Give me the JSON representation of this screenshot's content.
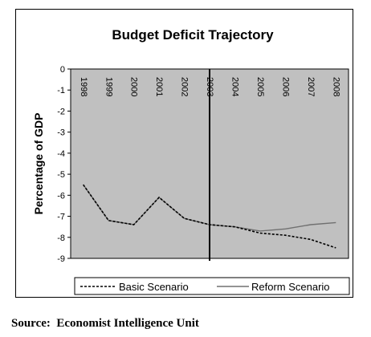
{
  "chart_data": {
    "type": "line",
    "title": "Budget Deficit Trajectory",
    "ylabel": "Percentage of GDP",
    "xlabel": "",
    "x": [
      "1998",
      "1999",
      "2000",
      "2001",
      "2002",
      "2003",
      "2004",
      "2005",
      "2006",
      "2007",
      "2008"
    ],
    "ylim": [
      -9,
      0
    ],
    "yticks": [
      0,
      -1,
      -2,
      -3,
      -4,
      -5,
      -6,
      -7,
      -8,
      -9
    ],
    "vertical_marker_at": "2003",
    "series": [
      {
        "name": "Basic Scenario",
        "style": "dashed",
        "color": "#000000",
        "values": [
          -5.5,
          -7.2,
          -7.4,
          -6.1,
          -7.1,
          -7.4,
          -7.5,
          -7.8,
          -7.9,
          -8.1,
          -8.5
        ]
      },
      {
        "name": "Reform Scenario",
        "style": "solid",
        "color": "#707070",
        "values": [
          -5.5,
          -7.2,
          -7.4,
          -6.1,
          -7.1,
          -7.4,
          -7.5,
          -7.7,
          -7.6,
          -7.4,
          -7.3
        ]
      }
    ],
    "plot_background": "#c0c0c0",
    "legend_position": "bottom"
  },
  "source": "Source:  Economist Intelligence Unit"
}
